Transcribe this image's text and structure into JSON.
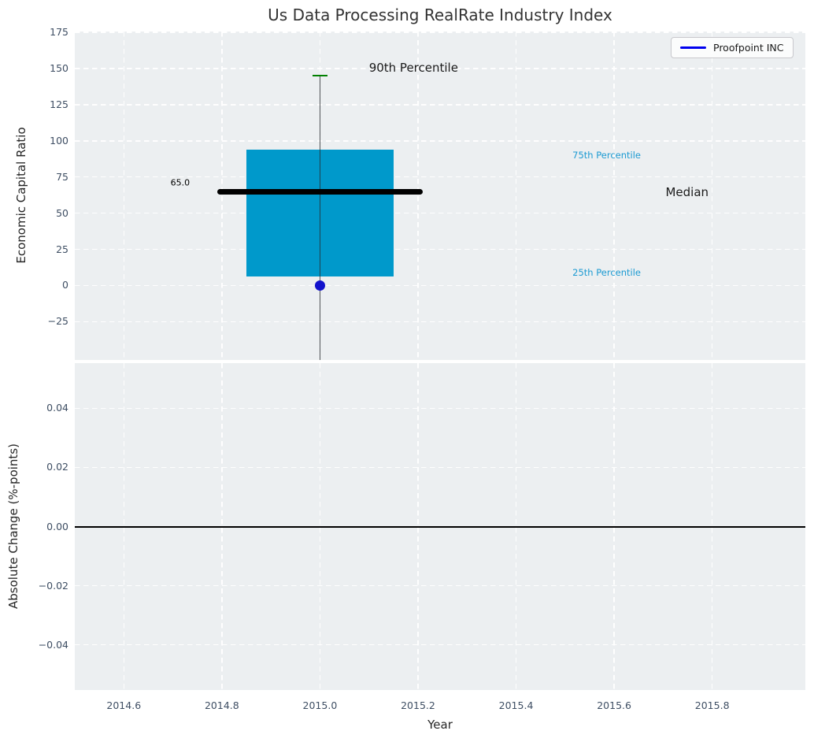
{
  "legend": {
    "label": "Proofpoint INC",
    "line_color": "#0000ee"
  },
  "colors": {
    "figure_background": "#ffffff",
    "plot_background": "#eceff1",
    "grid": "#ffffff",
    "tick_label": "#3e4e63",
    "axis_label": "#262626",
    "title": "#333333",
    "box_fill": "#0099cb",
    "whisker": "#4a4f53",
    "cap_90th": "#008000",
    "median_line": "#000000",
    "marker": "#1212cc",
    "percentile_text": "#1b9ad2",
    "zero_line": "#000000"
  },
  "chart_data": [
    {
      "type": "box",
      "title": "Us Data Processing RealRate Industry Index",
      "ylabel": "Economic Capital Ratio",
      "xlim": [
        2014.5,
        2015.99
      ],
      "ylim": [
        -51.5,
        175.6
      ],
      "grid": true,
      "yticks": [
        {
          "v": 175,
          "label": "175"
        },
        {
          "v": 150,
          "label": "150"
        },
        {
          "v": 125,
          "label": "125"
        },
        {
          "v": 100,
          "label": "100"
        },
        {
          "v": 75,
          "label": "75"
        },
        {
          "v": 50,
          "label": "50"
        },
        {
          "v": 25,
          "label": "25"
        },
        {
          "v": 0,
          "label": "0"
        },
        {
          "v": -25,
          "label": "−25"
        }
      ],
      "xticks": [
        {
          "v": 2014.6,
          "label": ""
        },
        {
          "v": 2014.8,
          "label": ""
        },
        {
          "v": 2015.0,
          "label": ""
        },
        {
          "v": 2015.2,
          "label": ""
        },
        {
          "v": 2015.4,
          "label": ""
        },
        {
          "v": 2015.6,
          "label": ""
        },
        {
          "v": 2015.8,
          "label": ""
        }
      ],
      "box": {
        "x_center": 2015.0,
        "box_left": 2014.85,
        "box_right": 2015.15,
        "q1": 6,
        "median": 65.0,
        "q3": 94,
        "p90_cap": 145,
        "cap_left": 2014.985,
        "cap_right": 2015.015,
        "median_line_left": 2014.79,
        "median_line_right": 2015.21,
        "lower_whisker_clipped_below_axis": true
      },
      "point": {
        "x": 2015.0,
        "y": 0.0,
        "series": "Proofpoint INC"
      },
      "annotations": [
        {
          "text": "65.0",
          "x": 2014.715,
          "y": 71,
          "size": 11,
          "color": "#000000",
          "anchor": "middle"
        },
        {
          "text": "90th Percentile",
          "x": 2015.1,
          "y": 150.3,
          "size": 15,
          "color": "#1a1a1a",
          "anchor": "start"
        },
        {
          "text": "75th Percentile",
          "x": 2015.515,
          "y": 90,
          "size": 11.5,
          "color": "#1b9ad2",
          "anchor": "start"
        },
        {
          "text": "Median",
          "x": 2015.705,
          "y": 64.5,
          "size": 15,
          "color": "#1a1a1a",
          "anchor": "start"
        },
        {
          "text": "25th Percentile",
          "x": 2015.515,
          "y": 9,
          "size": 11.5,
          "color": "#1b9ad2",
          "anchor": "start"
        }
      ]
    },
    {
      "type": "line",
      "ylabel": "Absolute Change (%-points)",
      "xlabel": "Year",
      "xlim": [
        2014.5,
        2015.99
      ],
      "ylim": [
        -0.0553,
        0.0553
      ],
      "grid": true,
      "yticks": [
        {
          "v": 0.04,
          "label": "0.04"
        },
        {
          "v": 0.02,
          "label": "0.02"
        },
        {
          "v": 0.0,
          "label": "0.00"
        },
        {
          "v": -0.02,
          "label": "−0.02"
        },
        {
          "v": -0.04,
          "label": "−0.04"
        }
      ],
      "xticks": [
        {
          "v": 2014.6,
          "label": "2014.6"
        },
        {
          "v": 2014.8,
          "label": "2014.8"
        },
        {
          "v": 2015.0,
          "label": "2015.0"
        },
        {
          "v": 2015.2,
          "label": "2015.2"
        },
        {
          "v": 2015.4,
          "label": "2015.4"
        },
        {
          "v": 2015.6,
          "label": "2015.6"
        },
        {
          "v": 2015.8,
          "label": "2015.8"
        }
      ],
      "zero_line": {
        "y": 0.0
      },
      "series": []
    }
  ]
}
